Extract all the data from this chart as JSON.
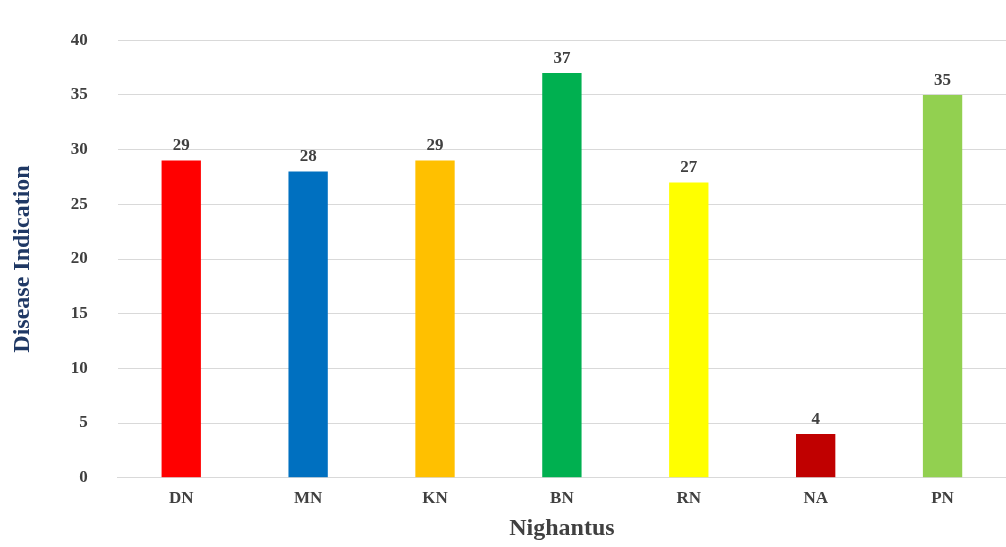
{
  "chart_data": {
    "type": "bar",
    "xlabel": "Nighantus",
    "ylabel": "Disease Indication",
    "categories": [
      "DN",
      "MN",
      "KN",
      "BN",
      "RN",
      "NA",
      "PN"
    ],
    "values": [
      29,
      28,
      29,
      37,
      27,
      4,
      35
    ],
    "colors": [
      "#ff0000",
      "#0070c0",
      "#ffc000",
      "#00b050",
      "#ffff00",
      "#c00000",
      "#92d050"
    ],
    "ylim": [
      0,
      40
    ],
    "yticks": [
      0,
      5,
      10,
      15,
      20,
      25,
      30,
      35,
      40
    ],
    "grid": "y",
    "data_labels": true
  }
}
